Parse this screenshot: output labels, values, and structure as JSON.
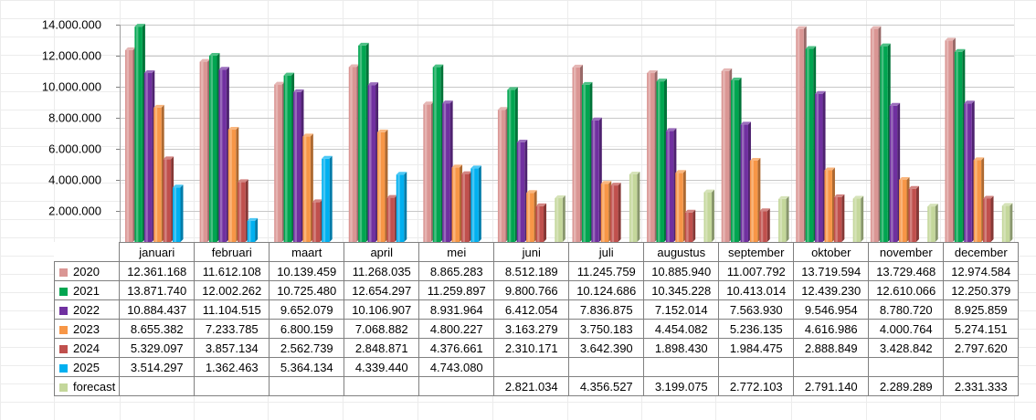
{
  "chart_data": {
    "type": "bar",
    "categories": [
      "januari",
      "februari",
      "maart",
      "april",
      "mei",
      "juni",
      "juli",
      "augustus",
      "september",
      "oktober",
      "november",
      "december"
    ],
    "y_ticks": [
      "-",
      "2.000.000",
      "4.000.000",
      "6.000.000",
      "8.000.000",
      "10.000.000",
      "12.000.000",
      "14.000.000"
    ],
    "ylim": [
      0,
      14000000
    ],
    "grid": true,
    "legend": "data-table",
    "series": [
      {
        "name": "2020",
        "color": "#da9694",
        "values": [
          12361168,
          11612108,
          10139459,
          11268035,
          8865283,
          8512189,
          11245759,
          10885940,
          11007792,
          13719594,
          13729468,
          12974584
        ]
      },
      {
        "name": "2021",
        "color": "#00a550",
        "values": [
          13871740,
          12002262,
          10725480,
          12654297,
          11259897,
          9800766,
          10124686,
          10345228,
          10413014,
          12439230,
          12610066,
          12250379
        ]
      },
      {
        "name": "2022",
        "color": "#7030a0",
        "values": [
          10884437,
          11104515,
          9652079,
          10106907,
          8931964,
          6412054,
          7836875,
          7152014,
          7563930,
          9546954,
          8780720,
          8925859
        ]
      },
      {
        "name": "2023",
        "color": "#f79646",
        "values": [
          8655382,
          7233785,
          6800159,
          7068882,
          4800227,
          3163279,
          3750183,
          4454082,
          5236135,
          4616986,
          4000764,
          5274151
        ]
      },
      {
        "name": "2024",
        "color": "#c0504d",
        "values": [
          5329097,
          3857134,
          2562739,
          2848871,
          4376661,
          2310171,
          3642390,
          1898430,
          1984475,
          2888849,
          3428842,
          2797620
        ]
      },
      {
        "name": "2025",
        "color": "#00b0f0",
        "values": [
          3514297,
          1362463,
          5364134,
          4339440,
          4743080,
          null,
          null,
          null,
          null,
          null,
          null,
          null
        ]
      },
      {
        "name": "forecast",
        "color": "#c4d79b",
        "values": [
          null,
          null,
          null,
          null,
          null,
          2821034,
          4356527,
          3199075,
          2772103,
          2791140,
          2289289,
          2331333
        ]
      }
    ],
    "table": {
      "rows": [
        {
          "label": "2020",
          "cells": [
            "12.361.168",
            "11.612.108",
            "10.139.459",
            "11.268.035",
            "8.865.283",
            "8.512.189",
            "11.245.759",
            "10.885.940",
            "11.007.792",
            "13.719.594",
            "13.729.468",
            "12.974.584"
          ]
        },
        {
          "label": "2021",
          "cells": [
            "13.871.740",
            "12.002.262",
            "10.725.480",
            "12.654.297",
            "11.259.897",
            "9.800.766",
            "10.124.686",
            "10.345.228",
            "10.413.014",
            "12.439.230",
            "12.610.066",
            "12.250.379"
          ]
        },
        {
          "label": "2022",
          "cells": [
            "10.884.437",
            "11.104.515",
            "9.652.079",
            "10.106.907",
            "8.931.964",
            "6.412.054",
            "7.836.875",
            "7.152.014",
            "7.563.930",
            "9.546.954",
            "8.780.720",
            "8.925.859"
          ]
        },
        {
          "label": "2023",
          "cells": [
            "8.655.382",
            "7.233.785",
            "6.800.159",
            "7.068.882",
            "4.800.227",
            "3.163.279",
            "3.750.183",
            "4.454.082",
            "5.236.135",
            "4.616.986",
            "4.000.764",
            "5.274.151"
          ]
        },
        {
          "label": "2024",
          "cells": [
            "5.329.097",
            "3.857.134",
            "2.562.739",
            "2.848.871",
            "4.376.661",
            "2.310.171",
            "3.642.390",
            "1.898.430",
            "1.984.475",
            "2.888.849",
            "3.428.842",
            "2.797.620"
          ]
        },
        {
          "label": "2025",
          "cells": [
            "3.514.297",
            "1.362.463",
            "5.364.134",
            "4.339.440",
            "4.743.080",
            "",
            "",
            "",
            "",
            "",
            "",
            ""
          ]
        },
        {
          "label": "forecast",
          "cells": [
            "",
            "",
            "",
            "",
            "",
            "2.821.034",
            "4.356.527",
            "3.199.075",
            "2.772.103",
            "2.791.140",
            "2.289.289",
            "2.331.333"
          ]
        }
      ]
    }
  }
}
